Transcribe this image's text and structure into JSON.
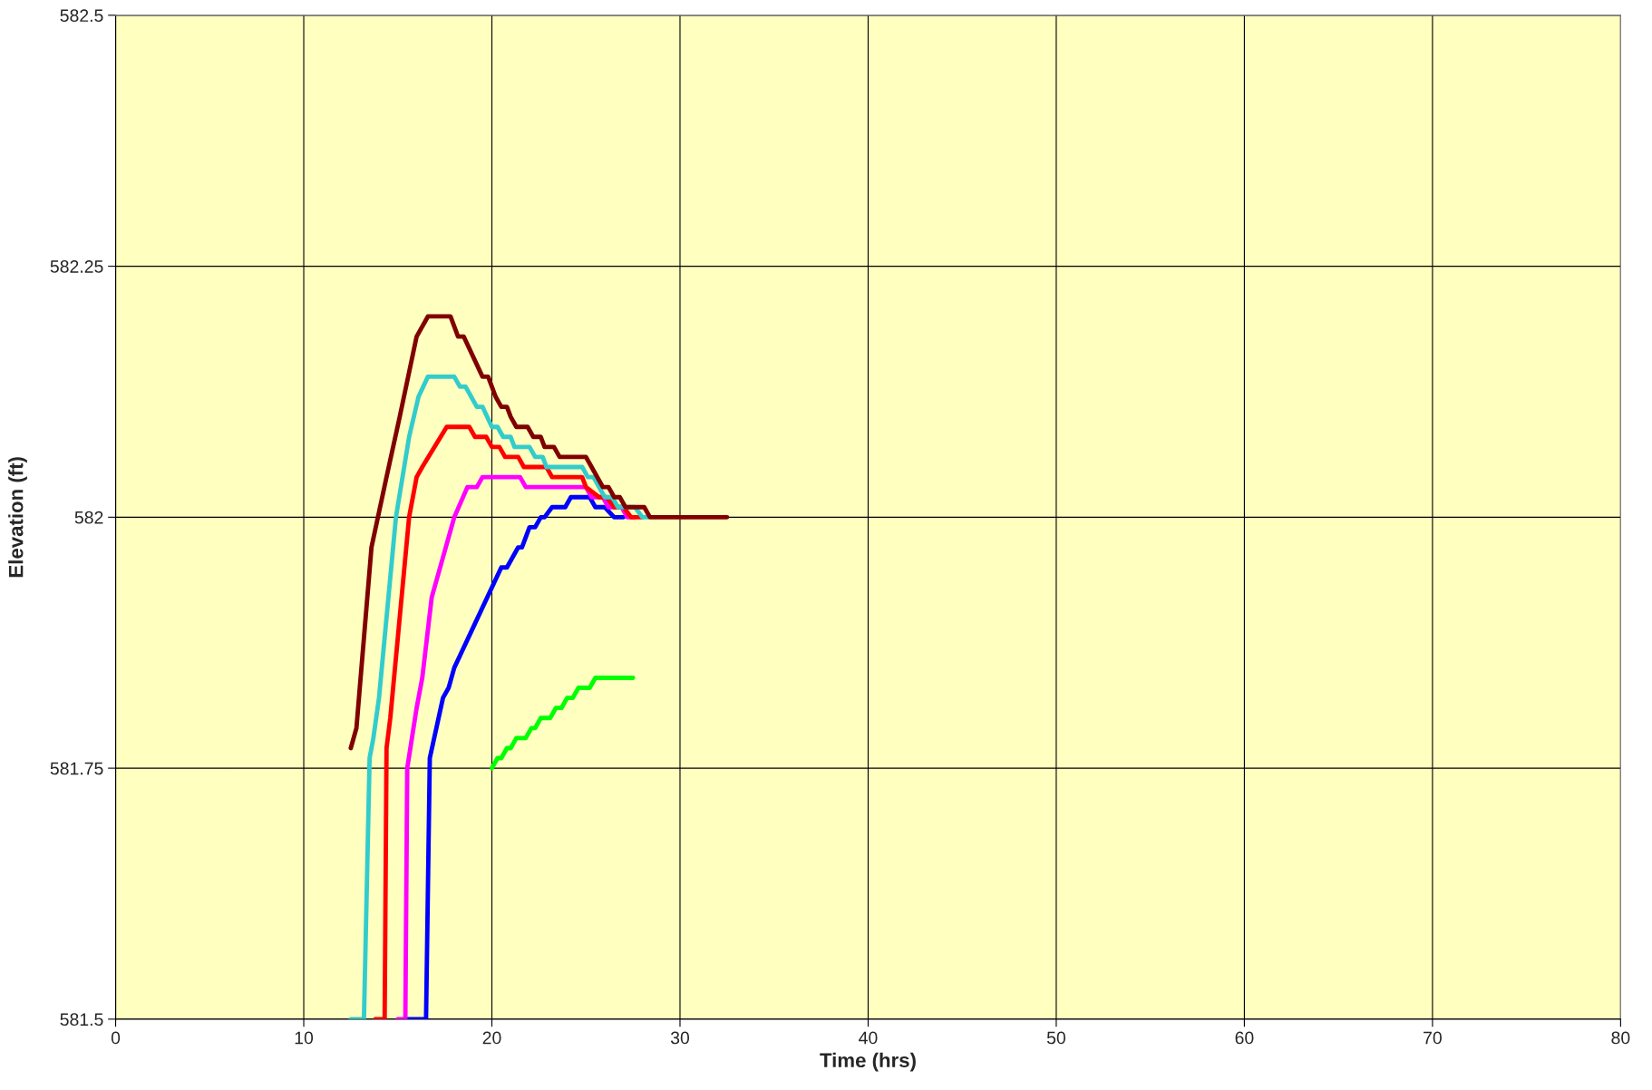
{
  "chart_data": {
    "type": "line",
    "xlabel": "Time (hrs)",
    "ylabel": "Elevation (ft)",
    "xlim": [
      0,
      80
    ],
    "xticks": [
      0,
      10,
      20,
      30,
      40,
      50,
      60,
      70,
      80
    ],
    "ylim": [
      581.5,
      582.5
    ],
    "yticks": [
      581.5,
      581.75,
      582,
      582.25,
      582.5
    ],
    "grid": true,
    "line_style": "solid",
    "marker": "none",
    "series": [
      {
        "color": "#00ff00",
        "x": [
          20.0,
          20.3,
          20.5,
          20.8,
          21.0,
          21.3,
          21.8,
          22.1,
          22.3,
          22.6,
          23.1,
          23.4,
          23.7,
          24.0,
          24.3,
          24.6,
          25.2,
          25.5,
          27.5
        ],
        "values": [
          581.75,
          581.76,
          581.76,
          581.77,
          581.77,
          581.78,
          581.78,
          581.79,
          581.79,
          581.8,
          581.8,
          581.81,
          581.81,
          581.82,
          581.82,
          581.83,
          581.83,
          581.84,
          581.84
        ]
      },
      {
        "color": "#0000ff",
        "x": [
          15.5,
          16.5,
          16.7,
          17.4,
          17.7,
          18.0,
          19.0,
          20.5,
          20.8,
          21.4,
          21.6,
          22.0,
          22.3,
          22.6,
          22.8,
          23.2,
          23.9,
          24.2,
          25.2,
          25.5,
          26.0,
          26.5,
          27.0
        ],
        "values": [
          581.5,
          581.5,
          581.76,
          581.82,
          581.83,
          581.85,
          581.89,
          581.95,
          581.95,
          581.97,
          581.97,
          581.99,
          581.99,
          582.0,
          582.0,
          582.01,
          582.01,
          582.02,
          582.02,
          582.01,
          582.01,
          582.0,
          582.0
        ]
      },
      {
        "color": "#ff00ff",
        "x": [
          15.0,
          15.4,
          15.5,
          16.0,
          16.3,
          16.8,
          18.0,
          18.7,
          19.2,
          19.5,
          21.5,
          21.8,
          25.0,
          25.3,
          25.9,
          26.2,
          26.9,
          27.2,
          27.6
        ],
        "values": [
          581.5,
          581.5,
          581.75,
          581.81,
          581.84,
          581.92,
          582.0,
          582.03,
          582.03,
          582.04,
          582.04,
          582.03,
          582.03,
          582.02,
          582.02,
          582.01,
          582.01,
          582.0,
          582.0
        ]
      },
      {
        "color": "#ff0000",
        "x": [
          13.8,
          14.3,
          14.4,
          14.6,
          15.0,
          15.6,
          16.0,
          16.3,
          17.6,
          18.8,
          19.1,
          19.7,
          20.0,
          20.4,
          20.7,
          21.4,
          21.7,
          22.9,
          23.2,
          24.8,
          25.0,
          25.7,
          26.1,
          26.5,
          27.0,
          27.4,
          28.0
        ],
        "values": [
          581.5,
          581.5,
          581.77,
          581.8,
          581.88,
          582.0,
          582.04,
          582.05,
          582.09,
          582.09,
          582.08,
          582.08,
          582.07,
          582.07,
          582.06,
          582.06,
          582.05,
          582.05,
          582.04,
          582.04,
          582.03,
          582.02,
          582.02,
          582.01,
          582.01,
          582.0,
          582.0
        ]
      },
      {
        "color": "#33cccc",
        "x": [
          12.5,
          13.2,
          13.5,
          13.7,
          14.0,
          14.4,
          14.9,
          15.6,
          16.1,
          16.6,
          18.0,
          18.3,
          18.6,
          18.9,
          19.2,
          19.5,
          20.0,
          20.3,
          20.6,
          21.0,
          21.2,
          22.0,
          22.3,
          22.7,
          22.9,
          24.8,
          25.1,
          25.4,
          26.0,
          26.4,
          26.7,
          27.6,
          28.0,
          28.3
        ],
        "values": [
          581.5,
          581.5,
          581.76,
          581.78,
          581.82,
          581.9,
          582.0,
          582.08,
          582.12,
          582.14,
          582.14,
          582.13,
          582.13,
          582.12,
          582.11,
          582.11,
          582.09,
          582.09,
          582.08,
          582.08,
          582.07,
          582.07,
          582.06,
          582.06,
          582.05,
          582.05,
          582.04,
          582.04,
          582.02,
          582.02,
          582.01,
          582.01,
          582.0,
          582.0
        ]
      },
      {
        "color": "#800000",
        "x": [
          12.5,
          12.8,
          13.2,
          13.6,
          14.4,
          15.1,
          16.0,
          16.6,
          17.8,
          18.2,
          18.5,
          19.5,
          19.8,
          20.2,
          20.5,
          20.8,
          21.0,
          21.3,
          21.9,
          22.2,
          22.6,
          22.8,
          23.3,
          23.6,
          25.0,
          25.3,
          25.9,
          26.2,
          26.5,
          26.8,
          27.1,
          28.1,
          28.4,
          32.5
        ],
        "values": [
          581.77,
          581.79,
          581.88,
          581.97,
          582.04,
          582.1,
          582.18,
          582.2,
          582.2,
          582.18,
          582.18,
          582.14,
          582.14,
          582.12,
          582.11,
          582.11,
          582.1,
          582.09,
          582.09,
          582.08,
          582.08,
          582.07,
          582.07,
          582.06,
          582.06,
          582.05,
          582.03,
          582.03,
          582.02,
          582.02,
          582.01,
          582.01,
          582.0,
          582.0
        ]
      }
    ]
  }
}
